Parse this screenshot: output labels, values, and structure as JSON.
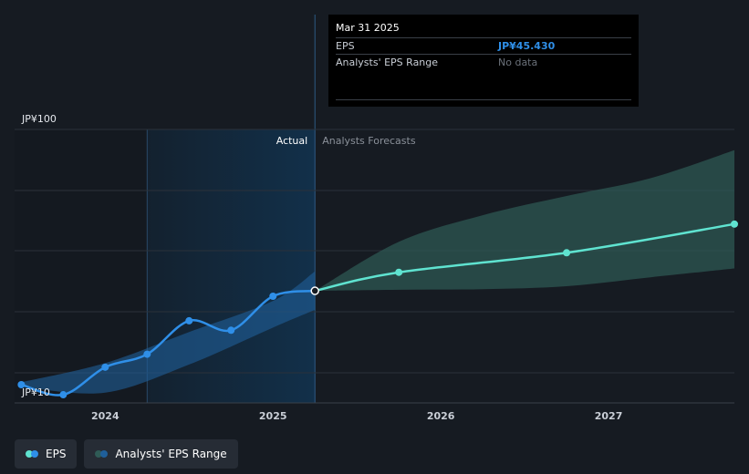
{
  "colors": {
    "actual_line": "#2f8fe8",
    "forecast_line": "#5fe3d0",
    "actual_band": "#1f5f9a",
    "forecast_band": "#2f5b56",
    "actual_region": "#12304a",
    "grid": "#2b313a"
  },
  "tooltip": {
    "date": "Mar 31 2025",
    "eps_label": "EPS",
    "eps_value": "JP¥45.430",
    "range_label": "Analysts' EPS Range",
    "range_value": "No data"
  },
  "legend": {
    "eps": "EPS",
    "range": "Analysts' EPS Range"
  },
  "chart_data": {
    "type": "line",
    "y_top_label": "JP¥100",
    "y_bottom_label": "JP¥10",
    "ylim": [
      10,
      100
    ],
    "xlim": [
      2023.46,
      2027.75
    ],
    "x_ticks": [
      {
        "value": 2024.0,
        "label": "2024"
      },
      {
        "value": 2025.0,
        "label": "2025"
      },
      {
        "value": 2026.0,
        "label": "2026"
      },
      {
        "value": 2027.0,
        "label": "2027"
      }
    ],
    "divider_x": 2025.25,
    "actual_region_start": 2024.25,
    "actual_label": "Actual",
    "forecast_label": "Analysts Forecasts",
    "series": [
      {
        "name": "EPS",
        "kind": "actual",
        "x": [
          2023.5,
          2023.75,
          2024.0,
          2024.25,
          2024.5,
          2024.75,
          2025.0,
          2025.25
        ],
        "y": [
          13.7,
          10.3,
          19.6,
          24.0,
          35.3,
          32.1,
          43.6,
          45.43
        ]
      },
      {
        "name": "EPS forecast",
        "kind": "forecast",
        "x": [
          2025.25,
          2025.75,
          2026.75,
          2027.75
        ],
        "y": [
          45.43,
          51.7,
          58.3,
          68.0
        ]
      }
    ],
    "bands": [
      {
        "kind": "actual_range",
        "x": [
          2023.5,
          2024.0,
          2024.5,
          2025.0,
          2025.25
        ],
        "high": [
          14.5,
          21.0,
          31.5,
          42.0,
          52.0
        ],
        "low": [
          13.0,
          11.0,
          20.5,
          33.0,
          39.0
        ]
      },
      {
        "kind": "forecast_range",
        "x": [
          2025.25,
          2025.75,
          2026.25,
          2026.75,
          2027.25,
          2027.75
        ],
        "high": [
          45.43,
          62.0,
          71.0,
          77.5,
          83.5,
          93.0
        ],
        "low": [
          45.43,
          45.8,
          46.0,
          47.0,
          50.0,
          53.0
        ]
      }
    ]
  }
}
